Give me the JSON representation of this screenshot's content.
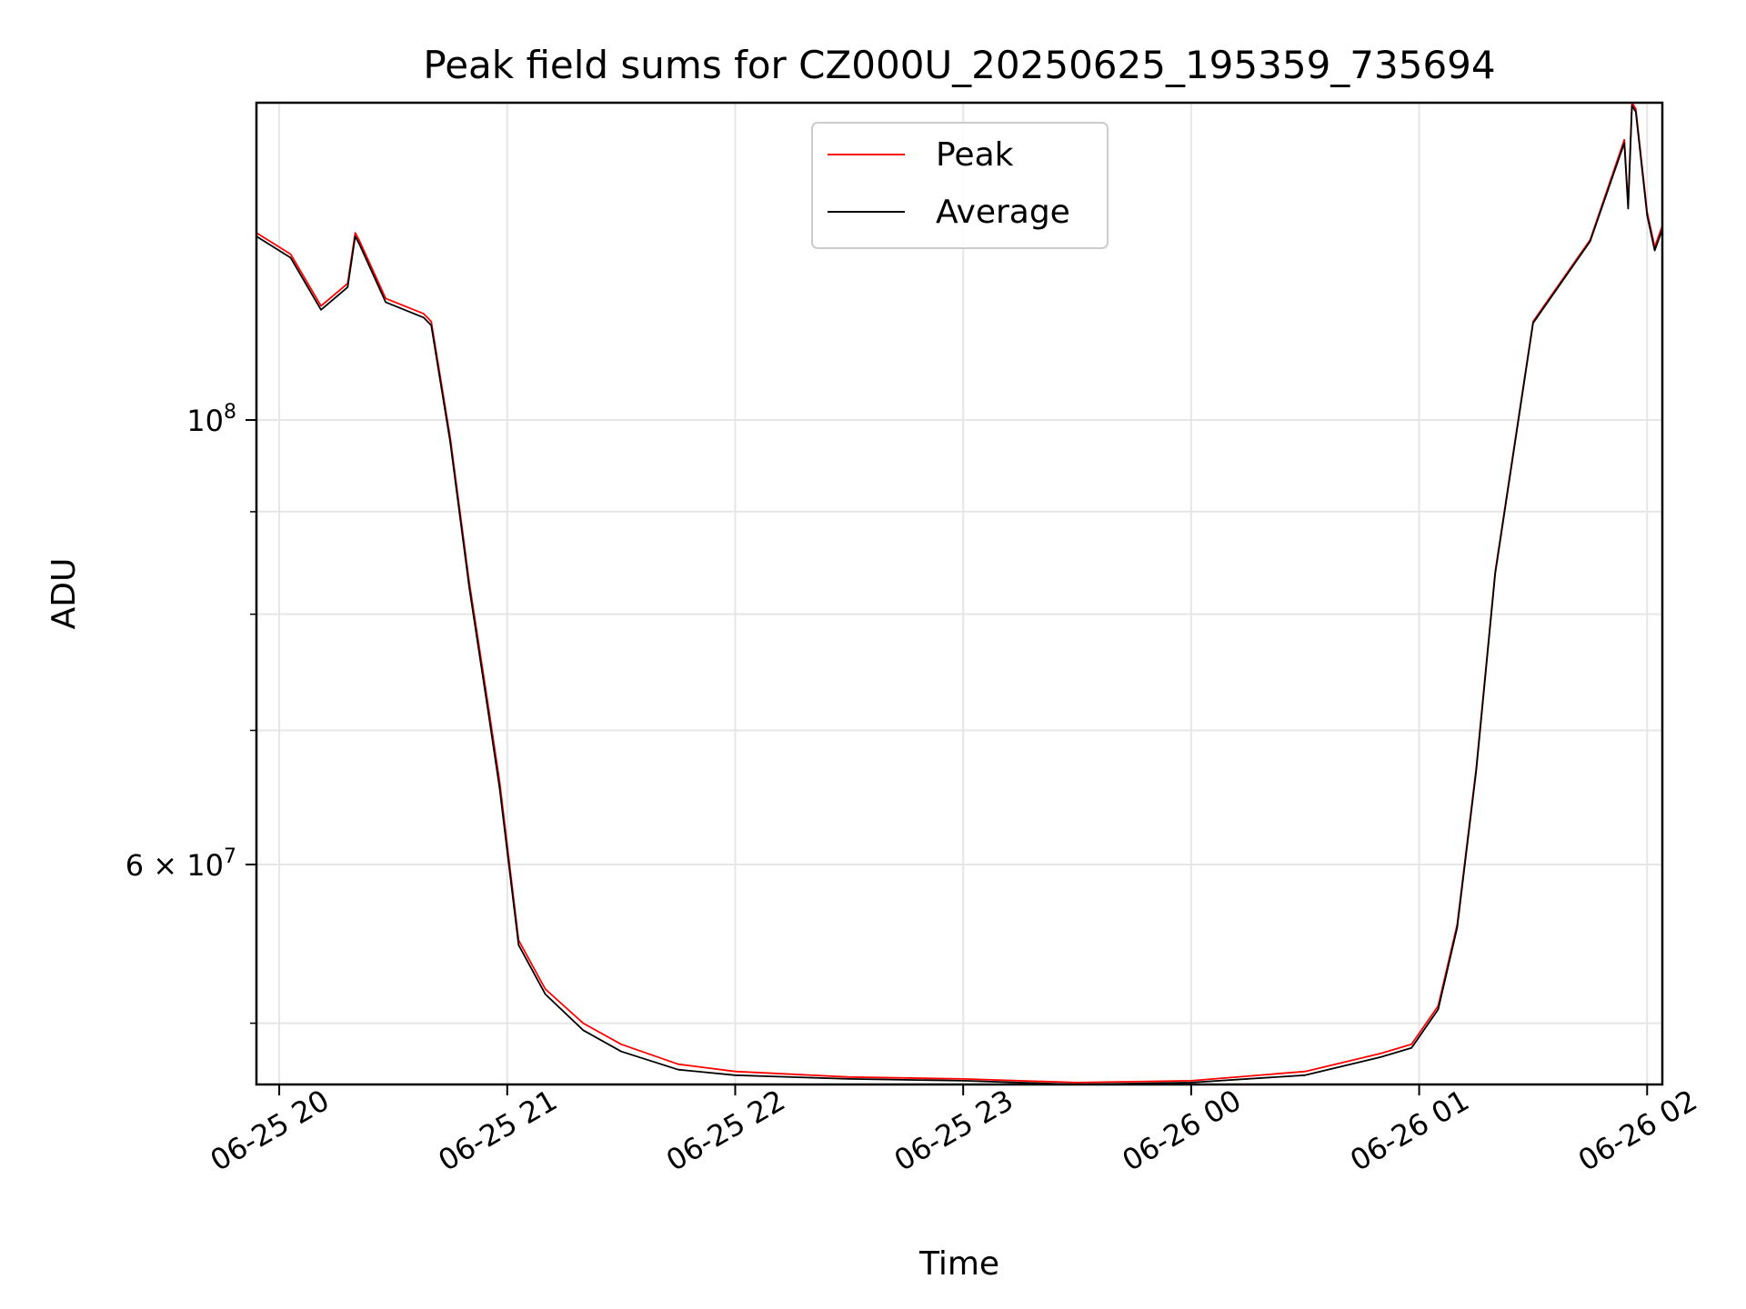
{
  "chart_data": {
    "type": "line",
    "title": "Peak field sums for CZ000U_20250625_195359_735694",
    "xlabel": "Time",
    "ylabel": "ADU",
    "y_scale": "log",
    "grid": true,
    "legend_placement": "upper center",
    "x_ticks": [
      "06-25 20",
      "06-25 21",
      "06-25 22",
      "06-25 23",
      "06-26 00",
      "06-26 01",
      "06-26 02"
    ],
    "y_ticks": [
      {
        "value": 100000000,
        "base": "10",
        "exp": "8",
        "mant": ""
      },
      {
        "value": 60000000,
        "base": "10",
        "exp": "7",
        "mant": "6 × "
      }
    ],
    "xlim": [
      "2025-06-25T19:54",
      "2025-06-26T02:04"
    ],
    "ylim": [
      46600000,
      144000000
    ],
    "colors": {
      "peak": "#ff0000",
      "average": "#000000",
      "grid": "#e6e6e6"
    },
    "series": [
      {
        "name": "Peak",
        "color": "#ff0000",
        "x": [
          "2025-06-25T19:54",
          "2025-06-25T20:03",
          "2025-06-25T20:11",
          "2025-06-25T20:18",
          "2025-06-25T20:20",
          "2025-06-25T20:21",
          "2025-06-25T20:28",
          "2025-06-25T20:38",
          "2025-06-25T20:40",
          "2025-06-25T20:45",
          "2025-06-25T20:50",
          "2025-06-25T20:55",
          "2025-06-25T20:58",
          "2025-06-25T21:03",
          "2025-06-25T21:10",
          "2025-06-25T21:20",
          "2025-06-25T21:30",
          "2025-06-25T21:45",
          "2025-06-25T22:00",
          "2025-06-25T22:30",
          "2025-06-25T23:00",
          "2025-06-25T23:30",
          "2025-06-26T00:00",
          "2025-06-26T00:30",
          "2025-06-26T00:50",
          "2025-06-26T00:58",
          "2025-06-26T01:05",
          "2025-06-26T01:10",
          "2025-06-26T01:15",
          "2025-06-26T01:20",
          "2025-06-26T01:30",
          "2025-06-26T01:45",
          "2025-06-26T01:54",
          "2025-06-26T01:55",
          "2025-06-26T01:56",
          "2025-06-26T01:57",
          "2025-06-26T02:00",
          "2025-06-26T02:02",
          "2025-06-26T02:04"
        ],
        "y": [
          124000000,
          121000000,
          114000000,
          117000000,
          124000000,
          123000000,
          115000000,
          113000000,
          112000000,
          98000000,
          83000000,
          72000000,
          66000000,
          55000000,
          52000000,
          50000000,
          48800000,
          47700000,
          47300000,
          47000000,
          46900000,
          46700000,
          46800000,
          47300000,
          48300000,
          48800000,
          51000000,
          56000000,
          67000000,
          84000000,
          112000000,
          123000000,
          138000000,
          128000000,
          144000000,
          143000000,
          127000000,
          122000000,
          125000000
        ]
      },
      {
        "name": "Average",
        "color": "#000000",
        "x": [
          "2025-06-25T19:54",
          "2025-06-25T20:03",
          "2025-06-25T20:11",
          "2025-06-25T20:18",
          "2025-06-25T20:20",
          "2025-06-25T20:21",
          "2025-06-25T20:28",
          "2025-06-25T20:38",
          "2025-06-25T20:40",
          "2025-06-25T20:45",
          "2025-06-25T20:50",
          "2025-06-25T20:55",
          "2025-06-25T20:58",
          "2025-06-25T21:03",
          "2025-06-25T21:10",
          "2025-06-25T21:20",
          "2025-06-25T21:30",
          "2025-06-25T21:45",
          "2025-06-25T22:00",
          "2025-06-25T22:30",
          "2025-06-25T23:00",
          "2025-06-25T23:30",
          "2025-06-26T00:00",
          "2025-06-26T00:30",
          "2025-06-26T00:50",
          "2025-06-26T00:58",
          "2025-06-26T01:05",
          "2025-06-26T01:10",
          "2025-06-26T01:15",
          "2025-06-26T01:20",
          "2025-06-26T01:30",
          "2025-06-26T01:45",
          "2025-06-26T01:54",
          "2025-06-26T01:55",
          "2025-06-26T01:56",
          "2025-06-26T01:57",
          "2025-06-26T02:00",
          "2025-06-26T02:02",
          "2025-06-26T02:04"
        ],
        "y": [
          123500000,
          120500000,
          113500000,
          116500000,
          123500000,
          122500000,
          114500000,
          112500000,
          111500000,
          97500000,
          82500000,
          71500000,
          65500000,
          54700000,
          51700000,
          49600000,
          48400000,
          47400000,
          47100000,
          46900000,
          46800000,
          46600000,
          46700000,
          47100000,
          48100000,
          48600000,
          50800000,
          55800000,
          66800000,
          83800000,
          111800000,
          122800000,
          137500000,
          127500000,
          143500000,
          142500000,
          126500000,
          121500000,
          124500000
        ]
      }
    ]
  },
  "legend": {
    "items": [
      {
        "label": "Peak",
        "color": "#ff0000"
      },
      {
        "label": "Average",
        "color": "#000000"
      }
    ]
  }
}
